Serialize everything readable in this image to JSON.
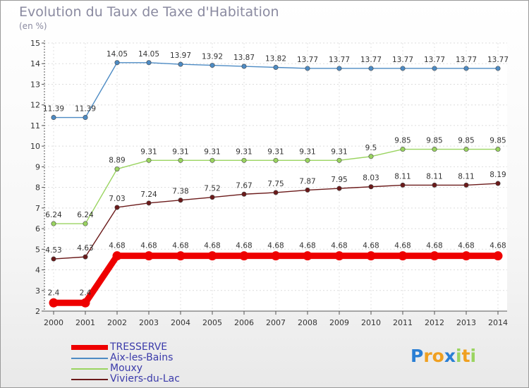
{
  "chart_data": {
    "type": "line",
    "title": "Evolution du Taux de Taxe d'Habitation",
    "unit_label": "(en %)",
    "xlabel": "",
    "ylabel": "",
    "ylim": [
      2,
      15
    ],
    "yticks": [
      2,
      3,
      4,
      5,
      6,
      7,
      8,
      9,
      10,
      11,
      12,
      13,
      14,
      15
    ],
    "categories": [
      "2000",
      "2001",
      "2002",
      "2003",
      "2004",
      "2005",
      "2006",
      "2007",
      "2008",
      "2009",
      "2010",
      "2011",
      "2012",
      "2013",
      "2014"
    ],
    "series": [
      {
        "name": "Aix-les-Bains",
        "color": "#4d8bc4",
        "values": [
          11.39,
          11.39,
          14.05,
          14.05,
          13.97,
          13.92,
          13.87,
          13.82,
          13.77,
          13.77,
          13.77,
          13.77,
          13.77,
          13.77,
          13.77
        ],
        "labels": [
          "11.39",
          "11.39",
          "14.05",
          "14.05",
          "13.97",
          "13.92",
          "13.87",
          "13.82",
          "13.77",
          "13.77",
          "13.77",
          "13.77",
          "13.77",
          "13.77",
          "13.77"
        ]
      },
      {
        "name": "Mouxy",
        "color": "#9ad460",
        "values": [
          6.24,
          6.24,
          8.89,
          9.31,
          9.31,
          9.31,
          9.31,
          9.31,
          9.31,
          9.31,
          9.5,
          9.85,
          9.85,
          9.85,
          9.85
        ],
        "labels": [
          "6.24",
          "6.24",
          "8.89",
          "9.31",
          "9.31",
          "9.31",
          "9.31",
          "9.31",
          "9.31",
          "9.31",
          "9.5",
          "9.85",
          "9.85",
          "9.85",
          "9.85"
        ]
      },
      {
        "name": "Viviers-du-Lac",
        "color": "#6b1a1a",
        "values": [
          4.53,
          4.63,
          7.03,
          7.24,
          7.38,
          7.52,
          7.67,
          7.75,
          7.87,
          7.95,
          8.03,
          8.11,
          8.11,
          8.11,
          8.19
        ],
        "labels": [
          "4.53",
          "4.63",
          "7.03",
          "7.24",
          "7.38",
          "7.52",
          "7.67",
          "7.75",
          "7.87",
          "7.95",
          "8.03",
          "8.11",
          "8.11",
          "8.11",
          "8.19"
        ]
      },
      {
        "name": "TRESSERVE",
        "color": "#ee0000",
        "values": [
          2.4,
          2.4,
          4.68,
          4.68,
          4.68,
          4.68,
          4.68,
          4.68,
          4.68,
          4.68,
          4.68,
          4.68,
          4.68,
          4.68,
          4.68
        ],
        "labels": [
          "2.4",
          "2.4",
          "4.68",
          "4.68",
          "4.68",
          "4.68",
          "4.68",
          "4.68",
          "4.68",
          "4.68",
          "4.68",
          "4.68",
          "4.68",
          "4.68",
          "4.68"
        ]
      }
    ],
    "legend": [
      "TRESSERVE",
      "Aix-les-Bains",
      "Mouxy",
      "Viviers-du-Lac"
    ],
    "legend_position": "bottom-left"
  },
  "logo": {
    "letters": [
      "P",
      "r",
      "o",
      "x",
      "i",
      "t",
      "i"
    ],
    "colors": [
      "#2a7fd4",
      "#f0a020",
      "#f0a020",
      "#2a7fd4",
      "#9ad460",
      "#f0a020",
      "#9ad460"
    ]
  }
}
